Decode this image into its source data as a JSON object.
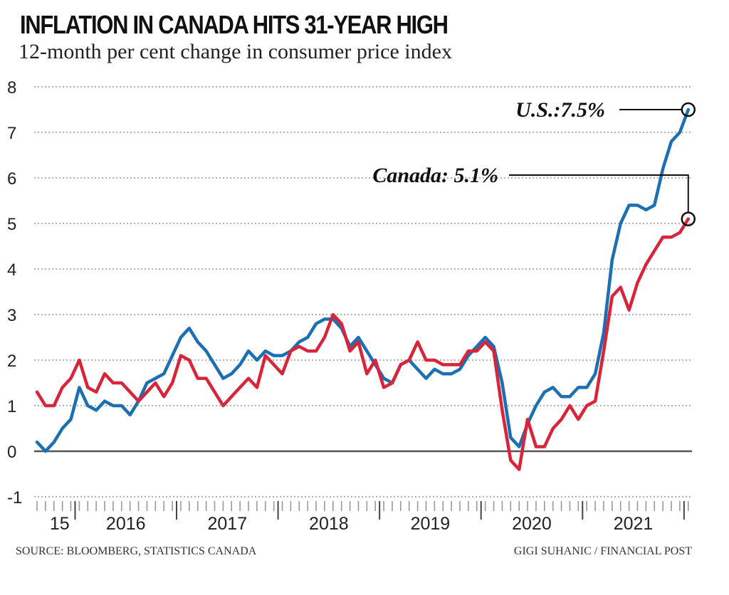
{
  "title": "INFLATION IN CANADA HITS 31-YEAR HIGH",
  "subtitle": "12-month per cent change in consumer price index",
  "source": "SOURCE: BLOOMBERG, STATISTICS CANADA",
  "credit": "GIGI SUHANIC / FINANCIAL POST",
  "chart_data": {
    "type": "line",
    "title": "INFLATION IN CANADA HITS 31-YEAR HIGH",
    "subtitle": "12-month per cent change in consumer price index",
    "xlabel": "",
    "ylabel": "",
    "ylim": [
      -1,
      8
    ],
    "yticks": [
      8,
      7,
      6,
      5,
      4,
      3,
      2,
      1,
      0,
      -1
    ],
    "grid": true,
    "x_start": "2015-08",
    "x_end": "2022-01",
    "x_tick_labels": [
      "15",
      "2016",
      "2017",
      "2018",
      "2019",
      "2020",
      "2021"
    ],
    "series": [
      {
        "name": "U.S.",
        "color": "#1a6fb5",
        "end_label": "U.S.:7.5%",
        "values": [
          0.2,
          0.0,
          0.2,
          0.5,
          0.7,
          1.4,
          1.0,
          0.9,
          1.1,
          1.0,
          1.0,
          0.8,
          1.1,
          1.5,
          1.6,
          1.7,
          2.1,
          2.5,
          2.7,
          2.4,
          2.2,
          1.9,
          1.6,
          1.7,
          1.9,
          2.2,
          2.0,
          2.2,
          2.1,
          2.1,
          2.2,
          2.4,
          2.5,
          2.8,
          2.9,
          2.9,
          2.7,
          2.3,
          2.5,
          2.2,
          1.9,
          1.6,
          1.5,
          1.9,
          2.0,
          1.8,
          1.6,
          1.8,
          1.7,
          1.7,
          1.8,
          2.1,
          2.3,
          2.5,
          2.3,
          1.5,
          0.3,
          0.1,
          0.6,
          1.0,
          1.3,
          1.4,
          1.2,
          1.2,
          1.4,
          1.4,
          1.7,
          2.6,
          4.2,
          5.0,
          5.4,
          5.4,
          5.3,
          5.4,
          6.2,
          6.8,
          7.0,
          7.5
        ]
      },
      {
        "name": "Canada",
        "color": "#d9243a",
        "end_label": "Canada: 5.1%",
        "values": [
          1.3,
          1.0,
          1.0,
          1.4,
          1.6,
          2.0,
          1.4,
          1.3,
          1.7,
          1.5,
          1.5,
          1.3,
          1.1,
          1.3,
          1.5,
          1.2,
          1.5,
          2.1,
          2.0,
          1.6,
          1.6,
          1.3,
          1.0,
          1.2,
          1.4,
          1.6,
          1.4,
          2.1,
          1.9,
          1.7,
          2.2,
          2.3,
          2.2,
          2.2,
          2.5,
          3.0,
          2.8,
          2.2,
          2.4,
          1.7,
          2.0,
          1.4,
          1.5,
          1.9,
          2.0,
          2.4,
          2.0,
          2.0,
          1.9,
          1.9,
          1.9,
          2.2,
          2.2,
          2.4,
          2.2,
          0.9,
          -0.2,
          -0.4,
          0.7,
          0.1,
          0.1,
          0.5,
          0.7,
          1.0,
          0.7,
          1.0,
          1.1,
          2.2,
          3.4,
          3.6,
          3.1,
          3.7,
          4.1,
          4.4,
          4.7,
          4.7,
          4.8,
          5.1
        ]
      }
    ]
  }
}
